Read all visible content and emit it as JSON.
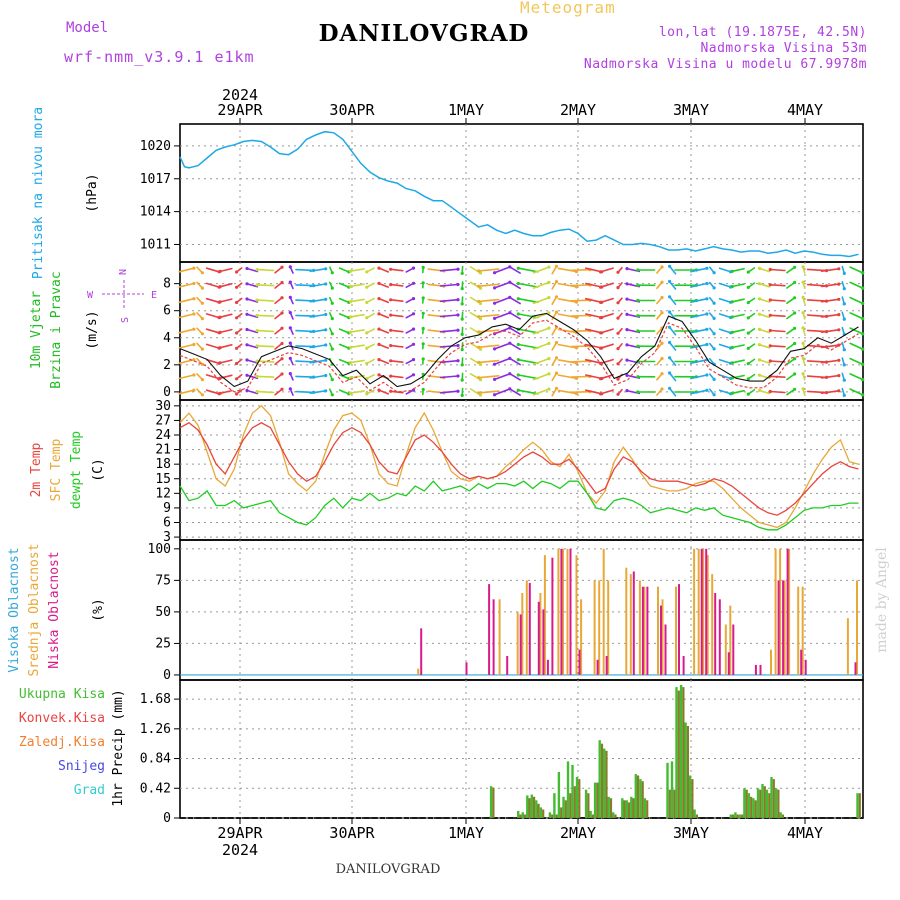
{
  "header": {
    "title": "DANILOVGRAD",
    "subtitle": "Meteogram",
    "model_label": "Model",
    "model_value": "wrf-nmm_v3.9.1 e1km",
    "info_lines": [
      "lon,lat (19.1875E, 42.5N)",
      "Nadmorska Visina 53m",
      "Nadmorska Visina u modelu 67.9978m"
    ]
  },
  "footer": {
    "location": "DANILOVGRAD",
    "credit": "made by Angel"
  },
  "top_axis": {
    "year": "2024",
    "dates": [
      "29APR",
      "30APR",
      "1MAY",
      "2MAY",
      "3MAY",
      "4MAY"
    ]
  },
  "bottom_axis": {
    "year": "2024",
    "dates": [
      "29APR",
      "30APR",
      "1MAY",
      "2MAY",
      "3MAY",
      "4MAY"
    ]
  },
  "colors": {
    "pressure": "#1ea8e8",
    "wind_label": "#22bb22",
    "temp2m": "#e8463c",
    "sfc": "#e8a838",
    "dew": "#22cc22",
    "cloud_high": "#33a8d8",
    "cloud_mid": "#e8a838",
    "cloud_low": "#d81b8c",
    "precip_total": "#44bb33",
    "precip_conv": "#e84444",
    "precip_frozen": "#f08030",
    "precip_snow": "#4848e0",
    "precip_hail": "#33cccc",
    "compass": "#b040e0"
  },
  "chart_data": [
    {
      "type": "line",
      "panel": "pressure",
      "ylabel": [
        "Pritisak na nivou mora",
        "(hPa)"
      ],
      "yticks": [
        1011,
        1014,
        1017,
        1020
      ],
      "ylim": [
        1009.4,
        1022.0
      ],
      "x_hours": [
        0,
        1,
        2,
        4,
        6,
        8,
        10,
        12,
        14,
        16,
        18,
        20,
        22,
        24,
        26,
        28,
        30,
        32,
        34,
        36,
        38,
        40,
        42,
        44,
        46,
        48,
        50,
        52,
        54,
        56,
        58,
        60,
        62,
        64,
        66,
        68,
        70,
        72,
        74,
        76,
        78,
        80,
        82,
        84,
        86,
        88,
        90,
        92,
        94,
        96,
        98,
        100,
        102,
        104,
        106,
        108,
        110,
        112,
        114,
        116,
        118,
        120,
        122,
        124,
        126,
        128,
        130,
        132,
        134,
        136,
        138,
        140,
        142,
        144,
        146,
        148,
        150
      ],
      "values": [
        1019.0,
        1018.1,
        1018.0,
        1018.2,
        1018.9,
        1019.6,
        1019.9,
        1020.1,
        1020.4,
        1020.5,
        1020.4,
        1019.9,
        1019.3,
        1019.2,
        1019.7,
        1020.6,
        1021.0,
        1021.3,
        1021.2,
        1020.6,
        1019.5,
        1018.4,
        1017.6,
        1017.1,
        1016.8,
        1016.6,
        1016.1,
        1015.9,
        1015.4,
        1015.0,
        1015.0,
        1014.4,
        1013.8,
        1013.2,
        1012.6,
        1012.8,
        1012.3,
        1012.0,
        1012.3,
        1012.0,
        1011.8,
        1011.8,
        1012.1,
        1012.3,
        1012.4,
        1012.0,
        1011.3,
        1011.4,
        1011.8,
        1011.4,
        1011.0,
        1011.0,
        1011.1,
        1011.0,
        1010.8,
        1010.5,
        1010.5,
        1010.6,
        1010.4,
        1010.6,
        1010.8,
        1010.6,
        1010.5,
        1010.3,
        1010.4,
        1010.4,
        1010.2,
        1010.3,
        1010.5,
        1010.2,
        1010.4,
        1010.3,
        1010.1,
        1010.0,
        1010.0,
        1009.9,
        1010.1
      ]
    },
    {
      "type": "line",
      "panel": "wind",
      "ylabel": [
        "10m Vjetar",
        "Brzina i Pravac",
        "(m/s)"
      ],
      "compass": [
        "N",
        "W",
        "E",
        "S"
      ],
      "yticks": [
        0,
        2,
        4,
        6,
        8
      ],
      "ylim": [
        -0.6,
        9.6
      ],
      "x_hours": [
        0,
        3,
        6,
        9,
        12,
        15,
        18,
        21,
        24,
        27,
        30,
        33,
        36,
        39,
        42,
        45,
        48,
        51,
        54,
        57,
        60,
        63,
        66,
        69,
        72,
        75,
        78,
        81,
        84,
        87,
        90,
        93,
        96,
        99,
        102,
        105,
        108,
        111,
        114,
        117,
        120,
        123,
        126,
        129,
        132,
        135,
        138,
        141,
        144,
        147,
        150
      ],
      "values": [
        3.2,
        2.8,
        2.4,
        1.2,
        0.4,
        0.8,
        2.6,
        3.0,
        3.4,
        3.2,
        2.8,
        2.4,
        1.2,
        1.6,
        0.6,
        1.2,
        0.4,
        0.6,
        1.2,
        2.4,
        3.4,
        4.0,
        4.2,
        4.8,
        5.0,
        4.6,
        5.6,
        5.8,
        5.2,
        4.6,
        3.8,
        2.6,
        1.0,
        1.4,
        2.6,
        3.4,
        5.6,
        5.2,
        3.8,
        2.2,
        1.6,
        1.0,
        0.8,
        0.8,
        1.6,
        3.0,
        3.2,
        4.0,
        3.6,
        4.2,
        4.8
      ]
    },
    {
      "type": "line",
      "panel": "temperature",
      "ylabel": [
        "2m Temp",
        "SFC Temp",
        "dewpt Temp",
        "(C)"
      ],
      "yticks": [
        3,
        6,
        9,
        12,
        15,
        18,
        21,
        24,
        27,
        30
      ],
      "ylim": [
        2.4,
        31.2
      ],
      "series": [
        {
          "name": "2m Temp",
          "x_hours": [
            0,
            2,
            4,
            6,
            8,
            10,
            12,
            14,
            16,
            18,
            20,
            22,
            24,
            26,
            28,
            30,
            32,
            34,
            36,
            38,
            40,
            42,
            44,
            46,
            48,
            50,
            52,
            54,
            56,
            58,
            60,
            62,
            64,
            66,
            68,
            70,
            72,
            74,
            76,
            78,
            80,
            82,
            84,
            86,
            88,
            90,
            92,
            94,
            96,
            98,
            100,
            102,
            104,
            106,
            108,
            110,
            112,
            114,
            116,
            118,
            120,
            122,
            124,
            126,
            128,
            130,
            132,
            134,
            136,
            138,
            140,
            142,
            144,
            146,
            148,
            150
          ],
          "values": [
            25.5,
            26.5,
            25.0,
            22.0,
            18.0,
            16.0,
            19.5,
            23.0,
            25.5,
            26.5,
            25.5,
            22.0,
            18.5,
            16.0,
            14.5,
            15.5,
            18.5,
            22.0,
            24.5,
            25.5,
            24.5,
            22.0,
            18.5,
            16.5,
            16.0,
            19.5,
            23.0,
            24.0,
            22.5,
            20.5,
            18.0,
            16.0,
            15.0,
            15.5,
            15.0,
            15.5,
            16.5,
            18.0,
            19.5,
            20.5,
            19.5,
            18.0,
            18.0,
            19.0,
            17.0,
            14.5,
            12.0,
            13.0,
            17.0,
            19.5,
            18.5,
            16.5,
            15.0,
            14.5,
            14.5,
            14.5,
            14.0,
            13.5,
            14.0,
            15.0,
            14.5,
            13.5,
            12.0,
            10.5,
            9.0,
            8.0,
            7.5,
            8.5,
            10.0,
            12.0,
            14.0,
            16.0,
            17.5,
            18.5,
            17.5,
            17.0
          ]
        },
        {
          "name": "SFC Temp",
          "x_hours": [
            0,
            2,
            4,
            6,
            8,
            10,
            12,
            14,
            16,
            18,
            20,
            22,
            24,
            26,
            28,
            30,
            32,
            34,
            36,
            38,
            40,
            42,
            44,
            46,
            48,
            50,
            52,
            54,
            56,
            58,
            60,
            62,
            64,
            66,
            68,
            70,
            72,
            74,
            76,
            78,
            80,
            82,
            84,
            86,
            88,
            90,
            92,
            94,
            96,
            98,
            100,
            102,
            104,
            106,
            108,
            110,
            112,
            114,
            116,
            118,
            120,
            122,
            124,
            126,
            128,
            130,
            132,
            134,
            136,
            138,
            140,
            142,
            144,
            146,
            148,
            150
          ],
          "values": [
            26.5,
            28.5,
            26.0,
            20.5,
            15.0,
            13.5,
            17.0,
            24.0,
            28.5,
            30.0,
            28.0,
            22.5,
            16.0,
            14.0,
            12.5,
            14.5,
            20.0,
            25.0,
            28.0,
            28.5,
            27.0,
            22.0,
            16.0,
            14.0,
            13.5,
            20.0,
            25.5,
            28.5,
            25.0,
            20.5,
            16.5,
            15.0,
            14.5,
            15.5,
            15.0,
            15.5,
            17.5,
            19.0,
            21.0,
            22.5,
            21.0,
            18.5,
            17.5,
            20.0,
            16.5,
            12.0,
            10.0,
            12.5,
            18.5,
            21.5,
            19.0,
            16.0,
            13.5,
            13.0,
            12.5,
            12.5,
            13.0,
            14.0,
            14.5,
            14.5,
            13.0,
            11.0,
            9.0,
            7.5,
            6.0,
            5.5,
            5.0,
            6.0,
            9.0,
            12.5,
            16.0,
            19.0,
            21.5,
            23.0,
            18.5,
            18.0
          ]
        },
        {
          "name": "dewpt Temp",
          "x_hours": [
            0,
            2,
            4,
            6,
            8,
            10,
            12,
            14,
            16,
            18,
            20,
            22,
            24,
            26,
            28,
            30,
            32,
            34,
            36,
            38,
            40,
            42,
            44,
            46,
            48,
            50,
            52,
            54,
            56,
            58,
            60,
            62,
            64,
            66,
            68,
            70,
            72,
            74,
            76,
            78,
            80,
            82,
            84,
            86,
            88,
            90,
            92,
            94,
            96,
            98,
            100,
            102,
            104,
            106,
            108,
            110,
            112,
            114,
            116,
            118,
            120,
            122,
            124,
            126,
            128,
            130,
            132,
            134,
            136,
            138,
            140,
            142,
            144,
            146,
            148,
            150
          ],
          "values": [
            13.5,
            10.5,
            11.0,
            12.5,
            9.5,
            9.5,
            10.5,
            9.0,
            9.5,
            10.0,
            10.5,
            8.0,
            7.0,
            6.0,
            5.5,
            7.0,
            9.5,
            11.0,
            9.0,
            11.0,
            10.5,
            12.0,
            10.5,
            11.0,
            12.0,
            11.5,
            13.5,
            12.5,
            14.5,
            12.5,
            13.0,
            13.5,
            12.5,
            14.0,
            13.0,
            14.0,
            14.0,
            13.5,
            14.5,
            13.0,
            14.5,
            14.0,
            13.0,
            14.5,
            14.5,
            12.0,
            9.0,
            8.5,
            10.5,
            11.0,
            10.5,
            9.5,
            8.0,
            8.5,
            9.0,
            8.5,
            8.0,
            9.0,
            8.5,
            9.0,
            7.5,
            7.0,
            6.5,
            6.0,
            5.0,
            4.5,
            4.5,
            5.5,
            7.0,
            8.5,
            9.0,
            9.0,
            9.5,
            9.5,
            10.0,
            10.0
          ]
        }
      ]
    },
    {
      "type": "bar",
      "panel": "cloud",
      "ylabel": [
        "Visoka Oblacnost",
        "Srednja Oblacnost",
        "Niska Oblacnost",
        "(%)"
      ],
      "yticks": [
        0,
        25,
        50,
        75,
        100
      ],
      "ylim": [
        -4,
        107
      ],
      "series": [
        {
          "name": "Visoka Oblacnost",
          "x_hours": [],
          "values": []
        },
        {
          "name": "Srednja Oblacnost",
          "x_hours": [
            53,
            71,
            75,
            76,
            77,
            80,
            81,
            84,
            85,
            86,
            88,
            89,
            92,
            93,
            94,
            95,
            99,
            100,
            102,
            103,
            106,
            107,
            110,
            114,
            115,
            116,
            117,
            118,
            121,
            122,
            131,
            132,
            133,
            134,
            135,
            137,
            138,
            148,
            150
          ],
          "values": [
            5,
            60,
            50,
            65,
            75,
            65,
            95,
            100,
            100,
            100,
            95,
            60,
            75,
            75,
            100,
            75,
            85,
            80,
            75,
            70,
            70,
            60,
            70,
            100,
            100,
            100,
            95,
            80,
            40,
            55,
            20,
            100,
            100,
            75,
            100,
            70,
            70,
            45,
            75
          ]
        },
        {
          "name": "Niska Oblacnost",
          "x_hours": [
            53,
            63,
            68,
            69,
            72,
            75,
            77,
            79,
            80,
            81,
            82,
            84,
            86,
            88,
            92,
            94,
            100,
            102,
            103,
            106,
            107,
            110,
            111,
            115,
            116,
            118,
            119,
            121,
            122,
            127,
            128,
            132,
            133,
            134,
            137,
            138,
            149
          ],
          "values": [
            37,
            10,
            72,
            60,
            15,
            48,
            73,
            58,
            52,
            12,
            93,
            100,
            100,
            20,
            12,
            15,
            82,
            70,
            70,
            55,
            40,
            72,
            15,
            100,
            100,
            65,
            60,
            18,
            40,
            8,
            8,
            75,
            75,
            100,
            20,
            12,
            10
          ]
        }
      ]
    },
    {
      "type": "bar",
      "panel": "precip",
      "ylabel": [
        "1hr Precip (mm)"
      ],
      "legend": [
        "Ukupna Kisa",
        "Konvek.Kisa",
        "Zaledj.Kisa",
        "Snijeg",
        "Grad"
      ],
      "yticks": [
        0,
        0.42,
        0.84,
        1.26,
        1.68
      ],
      "ylim": [
        0,
        1.95
      ],
      "x_hours": [
        69,
        75,
        76,
        77,
        78,
        79,
        80,
        82,
        83,
        84,
        85,
        86,
        87,
        88,
        90,
        91,
        92,
        93,
        94,
        95,
        96,
        98,
        99,
        100,
        101,
        102,
        103,
        108,
        109,
        110,
        111,
        112,
        113,
        114,
        122,
        123,
        124,
        125,
        126,
        127,
        128,
        129,
        130,
        131,
        132,
        133,
        150
      ],
      "total": [
        0.45,
        0.1,
        0.08,
        0.32,
        0.33,
        0.25,
        0.15,
        0.08,
        0.35,
        0.65,
        0.3,
        0.8,
        0.75,
        0.58,
        0.4,
        0.1,
        0.5,
        1.1,
        0.98,
        0.3,
        0.08,
        0.28,
        0.25,
        0.3,
        0.62,
        0.55,
        0.28,
        0.78,
        0.8,
        1.85,
        1.88,
        1.35,
        0.6,
        0.12,
        0.05,
        0.08,
        0.05,
        0.42,
        0.35,
        0.28,
        0.42,
        0.48,
        0.4,
        0.58,
        0.42,
        0.08,
        0.35
      ],
      "convective": [
        0.43,
        0.05,
        0.05,
        0.28,
        0.3,
        0.2,
        0.12,
        0.05,
        0.05,
        0.15,
        0.25,
        0.35,
        0.45,
        0.55,
        0.35,
        0.05,
        0.5,
        1.05,
        0.95,
        0.28,
        0.05,
        0.25,
        0.22,
        0.28,
        0.6,
        0.52,
        0.25,
        0.4,
        0.4,
        1.8,
        1.85,
        1.3,
        0.55,
        0.05,
        0.05,
        0.05,
        0.05,
        0.4,
        0.3,
        0.25,
        0.4,
        0.45,
        0.35,
        0.55,
        0.4,
        0.05,
        0.35
      ]
    }
  ]
}
